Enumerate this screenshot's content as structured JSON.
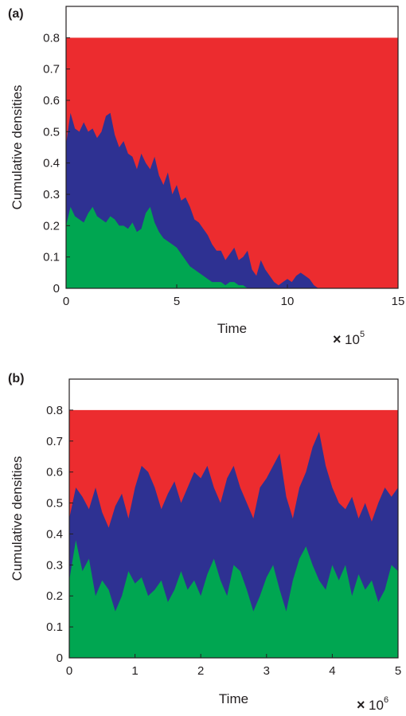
{
  "chart_data": [
    {
      "type": "area",
      "panel_label": "(a)",
      "xlabel": "Time",
      "ylabel": "Cumulative densities",
      "x_multiplier": {
        "base": "10",
        "exponent": "5"
      },
      "xlim": [
        0,
        15
      ],
      "ylim": [
        0,
        0.9
      ],
      "x_ticks": [
        "0",
        "5",
        "10",
        "15"
      ],
      "y_ticks": [
        "0",
        "0.1",
        "0.2",
        "0.3",
        "0.4",
        "0.5",
        "0.6",
        "0.7",
        "0.8"
      ],
      "series": [
        {
          "color": "#ec2c2f",
          "x": [
            0,
            15
          ],
          "values": [
            0.8,
            0.8
          ]
        },
        {
          "color": "#2e3192",
          "x": [
            0,
            0.2,
            0.4,
            0.6,
            0.8,
            1.0,
            1.2,
            1.4,
            1.6,
            1.8,
            2.0,
            2.2,
            2.4,
            2.6,
            2.8,
            3.0,
            3.2,
            3.4,
            3.6,
            3.8,
            4.0,
            4.2,
            4.4,
            4.6,
            4.8,
            5.0,
            5.2,
            5.4,
            5.6,
            5.8,
            6.0,
            6.2,
            6.4,
            6.6,
            6.8,
            7.0,
            7.2,
            7.4,
            7.6,
            7.8,
            8.0,
            8.2,
            8.4,
            8.6,
            8.8,
            9.0,
            9.2,
            9.4,
            9.6,
            9.8,
            10.0,
            10.2,
            10.4,
            10.6,
            10.8,
            11.0,
            11.2,
            11.4,
            11.6,
            15
          ],
          "values": [
            0.46,
            0.56,
            0.51,
            0.5,
            0.53,
            0.5,
            0.51,
            0.48,
            0.5,
            0.55,
            0.56,
            0.49,
            0.45,
            0.47,
            0.43,
            0.42,
            0.38,
            0.43,
            0.4,
            0.38,
            0.42,
            0.36,
            0.33,
            0.37,
            0.3,
            0.33,
            0.28,
            0.29,
            0.26,
            0.22,
            0.21,
            0.19,
            0.17,
            0.14,
            0.12,
            0.12,
            0.09,
            0.11,
            0.13,
            0.09,
            0.1,
            0.12,
            0.06,
            0.04,
            0.09,
            0.06,
            0.04,
            0.02,
            0.01,
            0.02,
            0.03,
            0.02,
            0.04,
            0.05,
            0.04,
            0.03,
            0.01,
            0,
            0,
            0
          ]
        },
        {
          "color": "#00a651",
          "x": [
            0,
            0.2,
            0.4,
            0.6,
            0.8,
            1.0,
            1.2,
            1.4,
            1.6,
            1.8,
            2.0,
            2.2,
            2.4,
            2.6,
            2.8,
            3.0,
            3.2,
            3.4,
            3.6,
            3.8,
            4.0,
            4.2,
            4.4,
            4.6,
            4.8,
            5.0,
            5.2,
            5.4,
            5.6,
            5.8,
            6.0,
            6.2,
            6.4,
            6.6,
            6.8,
            7.0,
            7.2,
            7.4,
            7.6,
            7.8,
            8.0,
            8.2,
            8.4,
            8.6,
            8.8,
            9.0,
            15
          ],
          "values": [
            0.2,
            0.26,
            0.23,
            0.22,
            0.21,
            0.24,
            0.26,
            0.23,
            0.22,
            0.21,
            0.23,
            0.22,
            0.2,
            0.2,
            0.19,
            0.21,
            0.18,
            0.19,
            0.24,
            0.26,
            0.21,
            0.18,
            0.16,
            0.15,
            0.14,
            0.13,
            0.11,
            0.09,
            0.07,
            0.06,
            0.05,
            0.04,
            0.03,
            0.02,
            0.02,
            0.02,
            0.01,
            0.02,
            0.02,
            0.01,
            0.01,
            0,
            0,
            0,
            0,
            0,
            0
          ]
        }
      ]
    },
    {
      "type": "area",
      "panel_label": "(b)",
      "xlabel": "Time",
      "ylabel": "Cumulative densities",
      "x_multiplier": {
        "base": "10",
        "exponent": "6"
      },
      "xlim": [
        0,
        5
      ],
      "ylim": [
        0,
        0.9
      ],
      "x_ticks": [
        "0",
        "1",
        "2",
        "3",
        "4",
        "5"
      ],
      "y_ticks": [
        "0",
        "0.1",
        "0.2",
        "0.3",
        "0.4",
        "0.5",
        "0.6",
        "0.7",
        "0.8"
      ],
      "series": [
        {
          "color": "#ec2c2f",
          "x": [
            0,
            5
          ],
          "values": [
            0.8,
            0.8
          ]
        },
        {
          "color": "#2e3192",
          "x": [
            0,
            0.1,
            0.2,
            0.3,
            0.4,
            0.5,
            0.6,
            0.7,
            0.8,
            0.9,
            1.0,
            1.1,
            1.2,
            1.3,
            1.4,
            1.5,
            1.6,
            1.7,
            1.8,
            1.9,
            2.0,
            2.1,
            2.2,
            2.3,
            2.4,
            2.5,
            2.6,
            2.7,
            2.8,
            2.9,
            3.0,
            3.1,
            3.2,
            3.3,
            3.4,
            3.5,
            3.6,
            3.7,
            3.8,
            3.9,
            4.0,
            4.1,
            4.2,
            4.3,
            4.4,
            4.5,
            4.6,
            4.7,
            4.8,
            4.9,
            5.0
          ],
          "values": [
            0.45,
            0.55,
            0.52,
            0.48,
            0.55,
            0.47,
            0.42,
            0.49,
            0.53,
            0.45,
            0.55,
            0.62,
            0.6,
            0.55,
            0.48,
            0.53,
            0.57,
            0.5,
            0.55,
            0.6,
            0.58,
            0.62,
            0.55,
            0.5,
            0.58,
            0.62,
            0.55,
            0.5,
            0.45,
            0.55,
            0.58,
            0.62,
            0.66,
            0.52,
            0.45,
            0.55,
            0.6,
            0.68,
            0.73,
            0.62,
            0.55,
            0.5,
            0.48,
            0.52,
            0.45,
            0.5,
            0.44,
            0.5,
            0.55,
            0.52,
            0.55
          ]
        },
        {
          "color": "#00a651",
          "x": [
            0,
            0.1,
            0.2,
            0.3,
            0.4,
            0.5,
            0.6,
            0.7,
            0.8,
            0.9,
            1.0,
            1.1,
            1.2,
            1.3,
            1.4,
            1.5,
            1.6,
            1.7,
            1.8,
            1.9,
            2.0,
            2.1,
            2.2,
            2.3,
            2.4,
            2.5,
            2.6,
            2.7,
            2.8,
            2.9,
            3.0,
            3.1,
            3.2,
            3.3,
            3.4,
            3.5,
            3.6,
            3.7,
            3.8,
            3.9,
            4.0,
            4.1,
            4.2,
            4.3,
            4.4,
            4.5,
            4.6,
            4.7,
            4.8,
            4.9,
            5.0
          ],
          "values": [
            0.25,
            0.38,
            0.28,
            0.32,
            0.2,
            0.25,
            0.22,
            0.15,
            0.2,
            0.28,
            0.24,
            0.26,
            0.2,
            0.22,
            0.25,
            0.18,
            0.22,
            0.28,
            0.22,
            0.25,
            0.2,
            0.27,
            0.32,
            0.25,
            0.2,
            0.3,
            0.28,
            0.22,
            0.15,
            0.2,
            0.26,
            0.3,
            0.22,
            0.15,
            0.25,
            0.32,
            0.36,
            0.3,
            0.25,
            0.22,
            0.3,
            0.25,
            0.3,
            0.2,
            0.27,
            0.22,
            0.25,
            0.18,
            0.22,
            0.3,
            0.28
          ]
        }
      ]
    }
  ]
}
